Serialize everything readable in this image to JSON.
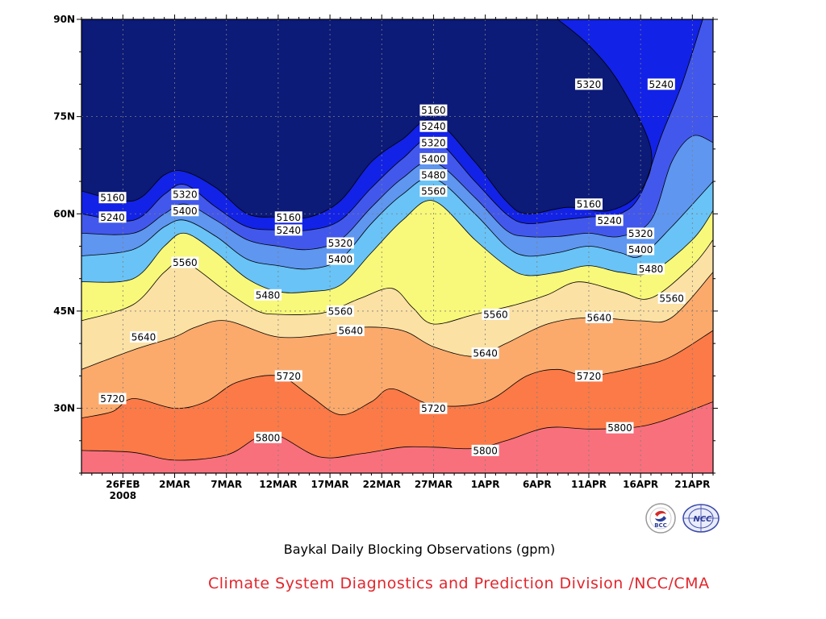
{
  "chart_data": {
    "type": "heatmap",
    "subtype": "filled-contour time-latitude section",
    "title": "Baykal Daily Blocking Observations (gpm)",
    "source": "Climate System Diagnostics and Prediction Division /NCC/CMA",
    "x_ticks": [
      "26FEB",
      "2MAR",
      "7MAR",
      "12MAR",
      "17MAR",
      "22MAR",
      "27MAR",
      "1APR",
      "6APR",
      "11APR",
      "16APR",
      "21APR"
    ],
    "x_tick_year": "2008",
    "x_range": [
      "2008-02-22",
      "2008-04-23"
    ],
    "y_ticks": [
      "30N",
      "45N",
      "60N",
      "75N",
      "90N"
    ],
    "y_range_deg": [
      20,
      90
    ],
    "contour_levels": [
      5160,
      5240,
      5320,
      5400,
      5480,
      5560,
      5640,
      5720,
      5800
    ],
    "fill_colors": [
      "#0c1a78",
      "#1222e6",
      "#4258ec",
      "#5e96f0",
      "#69c3f6",
      "#f8f87a",
      "#fbe1a4",
      "#fbaa6c",
      "#fb7a47",
      "#f8707c"
    ],
    "grid": true,
    "contour_lines": [
      {
        "level": 5800,
        "points": [
          [
            "2008-02-22",
            23.5
          ],
          [
            "2008-02-27",
            23.2
          ],
          [
            "2008-03-02",
            22
          ],
          [
            "2008-03-07",
            22.8
          ],
          [
            "2008-03-10",
            25.5
          ],
          [
            "2008-03-12",
            25.8
          ],
          [
            "2008-03-16",
            22.5
          ],
          [
            "2008-03-20",
            23
          ],
          [
            "2008-03-24",
            24
          ],
          [
            "2008-03-27",
            24
          ],
          [
            "2008-03-31",
            23.8
          ],
          [
            "2008-04-03",
            25
          ],
          [
            "2008-04-07",
            27
          ],
          [
            "2008-04-11",
            26.8
          ],
          [
            "2008-04-15",
            27
          ],
          [
            "2008-04-18",
            28
          ],
          [
            "2008-04-23",
            31
          ]
        ]
      },
      {
        "level": 5720,
        "points": [
          [
            "2008-02-22",
            28.5
          ],
          [
            "2008-02-25",
            29.5
          ],
          [
            "2008-02-27",
            31.5
          ],
          [
            "2008-03-02",
            30
          ],
          [
            "2008-03-05",
            31
          ],
          [
            "2008-03-08",
            34
          ],
          [
            "2008-03-12",
            35
          ],
          [
            "2008-03-15",
            32
          ],
          [
            "2008-03-18",
            29
          ],
          [
            "2008-03-21",
            31
          ],
          [
            "2008-03-23",
            33
          ],
          [
            "2008-03-27",
            30.5
          ],
          [
            "2008-04-01",
            31
          ],
          [
            "2008-04-05",
            35
          ],
          [
            "2008-04-08",
            36
          ],
          [
            "2008-04-11",
            35
          ],
          [
            "2008-04-16",
            36.5
          ],
          [
            "2008-04-19",
            38
          ],
          [
            "2008-04-23",
            42
          ]
        ]
      },
      {
        "level": 5640,
        "points": [
          [
            "2008-02-22",
            36
          ],
          [
            "2008-02-27",
            39
          ],
          [
            "2008-03-02",
            41
          ],
          [
            "2008-03-04",
            42.5
          ],
          [
            "2008-03-07",
            43.5
          ],
          [
            "2008-03-12",
            41
          ],
          [
            "2008-03-17",
            41.5
          ],
          [
            "2008-03-20",
            42.5
          ],
          [
            "2008-03-24",
            42
          ],
          [
            "2008-03-27",
            39.5
          ],
          [
            "2008-03-31",
            38
          ],
          [
            "2008-04-03",
            40
          ],
          [
            "2008-04-07",
            43
          ],
          [
            "2008-04-11",
            44
          ],
          [
            "2008-04-16",
            43.5
          ],
          [
            "2008-04-19",
            44
          ],
          [
            "2008-04-23",
            51
          ]
        ]
      },
      {
        "level": 5560,
        "points": [
          [
            "2008-02-22",
            43.5
          ],
          [
            "2008-02-27",
            46
          ],
          [
            "2008-03-01",
            51
          ],
          [
            "2008-03-03",
            52.5
          ],
          [
            "2008-03-07",
            48
          ],
          [
            "2008-03-10",
            45
          ],
          [
            "2008-03-12",
            44.5
          ],
          [
            "2008-03-15",
            44.5
          ],
          [
            "2008-03-17",
            45
          ],
          [
            "2008-03-20",
            47
          ],
          [
            "2008-03-23",
            48.5
          ],
          [
            "2008-03-25",
            45.5
          ],
          [
            "2008-03-27",
            43
          ],
          [
            "2008-03-31",
            44.5
          ],
          [
            "2008-04-04",
            46
          ],
          [
            "2008-04-07",
            47.5
          ],
          [
            "2008-04-10",
            49.5
          ],
          [
            "2008-04-14",
            48
          ],
          [
            "2008-04-17",
            47
          ],
          [
            "2008-04-21",
            52
          ],
          [
            "2008-04-23",
            56
          ]
        ]
      },
      {
        "level": 5480,
        "points": [
          [
            "2008-02-22",
            49.5
          ],
          [
            "2008-02-27",
            50
          ],
          [
            "2008-03-01",
            55
          ],
          [
            "2008-03-03",
            57
          ],
          [
            "2008-03-06",
            54
          ],
          [
            "2008-03-09",
            50
          ],
          [
            "2008-03-12",
            48
          ],
          [
            "2008-03-15",
            48
          ],
          [
            "2008-03-18",
            49
          ],
          [
            "2008-03-21",
            54
          ],
          [
            "2008-03-24",
            59
          ],
          [
            "2008-03-27",
            62
          ],
          [
            "2008-03-31",
            56
          ],
          [
            "2008-04-03",
            52
          ],
          [
            "2008-04-05",
            50.5
          ],
          [
            "2008-04-08",
            51
          ],
          [
            "2008-04-11",
            52
          ],
          [
            "2008-04-14",
            51
          ],
          [
            "2008-04-17",
            51
          ],
          [
            "2008-04-21",
            56
          ],
          [
            "2008-04-23",
            60.5
          ]
        ]
      },
      {
        "level": 5400,
        "points": [
          [
            "2008-02-22",
            53.5
          ],
          [
            "2008-02-27",
            54.5
          ],
          [
            "2008-03-01",
            58
          ],
          [
            "2008-03-03",
            59
          ],
          [
            "2008-03-06",
            56.5
          ],
          [
            "2008-03-09",
            53
          ],
          [
            "2008-03-12",
            52
          ],
          [
            "2008-03-15",
            51.5
          ],
          [
            "2008-03-18",
            53
          ],
          [
            "2008-03-21",
            58.5
          ],
          [
            "2008-03-24",
            63
          ],
          [
            "2008-03-27",
            65.5
          ],
          [
            "2008-03-31",
            60
          ],
          [
            "2008-04-03",
            55
          ],
          [
            "2008-04-05",
            53.5
          ],
          [
            "2008-04-08",
            54
          ],
          [
            "2008-04-11",
            55
          ],
          [
            "2008-04-14",
            54
          ],
          [
            "2008-04-16",
            53.5
          ],
          [
            "2008-04-19",
            58
          ],
          [
            "2008-04-23",
            65
          ]
        ]
      },
      {
        "level": 5320,
        "points": [
          [
            "2008-02-22",
            57
          ],
          [
            "2008-02-27",
            57
          ],
          [
            "2008-03-01",
            60
          ],
          [
            "2008-03-03",
            61.5
          ],
          [
            "2008-03-06",
            59
          ],
          [
            "2008-03-09",
            56
          ],
          [
            "2008-03-12",
            55
          ],
          [
            "2008-03-15",
            54.5
          ],
          [
            "2008-03-18",
            56
          ],
          [
            "2008-03-21",
            61
          ],
          [
            "2008-03-24",
            65.5
          ],
          [
            "2008-03-27",
            68
          ],
          [
            "2008-03-31",
            62.5
          ],
          [
            "2008-04-03",
            57.5
          ],
          [
            "2008-04-05",
            56.5
          ],
          [
            "2008-04-08",
            56.5
          ],
          [
            "2008-04-11",
            57
          ],
          [
            "2008-04-14",
            56.5
          ],
          [
            "2008-04-17",
            59
          ],
          [
            "2008-04-19",
            68
          ],
          [
            "2008-04-21",
            72
          ],
          [
            "2008-04-23",
            71
          ]
        ]
      },
      {
        "level": 5240,
        "points": [
          [
            "2008-02-22",
            60
          ],
          [
            "2008-02-27",
            59
          ],
          [
            "2008-03-01",
            63
          ],
          [
            "2008-03-03",
            64.5
          ],
          [
            "2008-03-06",
            61
          ],
          [
            "2008-03-09",
            58
          ],
          [
            "2008-03-12",
            57.5
          ],
          [
            "2008-03-15",
            57.5
          ],
          [
            "2008-03-18",
            59
          ],
          [
            "2008-03-21",
            64
          ],
          [
            "2008-03-24",
            68.5
          ],
          [
            "2008-03-27",
            71.5
          ],
          [
            "2008-03-31",
            65
          ],
          [
            "2008-04-03",
            60
          ],
          [
            "2008-04-05",
            58.5
          ],
          [
            "2008-04-08",
            59
          ],
          [
            "2008-04-11",
            59.5
          ],
          [
            "2008-04-14",
            60
          ],
          [
            "2008-04-16",
            63
          ],
          [
            "2008-04-18",
            72
          ],
          [
            "2008-04-20",
            80
          ],
          [
            "2008-04-22",
            90
          ]
        ]
      },
      {
        "level": 5160,
        "points": [
          [
            "2008-02-22",
            63.5
          ],
          [
            "2008-02-27",
            62
          ],
          [
            "2008-03-01",
            66
          ],
          [
            "2008-03-03",
            66.5
          ],
          [
            "2008-03-06",
            64
          ],
          [
            "2008-03-09",
            60
          ],
          [
            "2008-03-12",
            59.5
          ],
          [
            "2008-03-15",
            59.5
          ],
          [
            "2008-03-18",
            62
          ],
          [
            "2008-03-21",
            68
          ],
          [
            "2008-03-24",
            71.5
          ],
          [
            "2008-03-27",
            74.5
          ],
          [
            "2008-03-31",
            68
          ],
          [
            "2008-04-03",
            62
          ],
          [
            "2008-04-05",
            60
          ],
          [
            "2008-04-09",
            61
          ],
          [
            "2008-04-13",
            60.5
          ],
          [
            "2008-04-16",
            63.5
          ],
          [
            "2008-04-17",
            70
          ],
          [
            "2008-04-14",
            80
          ],
          [
            "2008-04-11",
            86
          ],
          [
            "2008-04-08",
            90
          ]
        ]
      }
    ],
    "contour_labels": [
      {
        "text": "5160",
        "x": "2008-02-25",
        "y": 62.5
      },
      {
        "text": "5240",
        "x": "2008-02-25",
        "y": 59.5
      },
      {
        "text": "5320",
        "x": "2008-03-03",
        "y": 63
      },
      {
        "text": "5400",
        "x": "2008-03-03",
        "y": 60.5
      },
      {
        "text": "5560",
        "x": "2008-03-03",
        "y": 52.5
      },
      {
        "text": "5640",
        "x": "2008-02-28",
        "y": 41
      },
      {
        "text": "5720",
        "x": "2008-02-25",
        "y": 31.5
      },
      {
        "text": "5800",
        "x": "2008-03-11",
        "y": 25.5
      },
      {
        "text": "5160",
        "x": "2008-03-13",
        "y": 59.5
      },
      {
        "text": "5240",
        "x": "2008-03-13",
        "y": 57.5
      },
      {
        "text": "5320",
        "x": "2008-03-18",
        "y": 55.5
      },
      {
        "text": "5400",
        "x": "2008-03-18",
        "y": 53
      },
      {
        "text": "5480",
        "x": "2008-03-11",
        "y": 47.5
      },
      {
        "text": "5560",
        "x": "2008-03-18",
        "y": 45
      },
      {
        "text": "5640",
        "x": "2008-03-19",
        "y": 42
      },
      {
        "text": "5720",
        "x": "2008-03-13",
        "y": 35
      },
      {
        "text": "5160",
        "x": "2008-03-27",
        "y": 76
      },
      {
        "text": "5240",
        "x": "2008-03-27",
        "y": 73.5
      },
      {
        "text": "5320",
        "x": "2008-03-27",
        "y": 71
      },
      {
        "text": "5400",
        "x": "2008-03-27",
        "y": 68.5
      },
      {
        "text": "5480",
        "x": "2008-03-27",
        "y": 66
      },
      {
        "text": "5560",
        "x": "2008-03-27",
        "y": 63.5
      },
      {
        "text": "5720",
        "x": "2008-03-27",
        "y": 30
      },
      {
        "text": "5560",
        "x": "2008-04-02",
        "y": 44.5
      },
      {
        "text": "5640",
        "x": "2008-04-01",
        "y": 38.5
      },
      {
        "text": "5800",
        "x": "2008-04-01",
        "y": 23.5
      },
      {
        "text": "5320",
        "x": "2008-04-11",
        "y": 80
      },
      {
        "text": "5240",
        "x": "2008-04-18",
        "y": 80
      },
      {
        "text": "5160",
        "x": "2008-04-11",
        "y": 61.5
      },
      {
        "text": "5240",
        "x": "2008-04-13",
        "y": 59
      },
      {
        "text": "5320",
        "x": "2008-04-16",
        "y": 57
      },
      {
        "text": "5400",
        "x": "2008-04-16",
        "y": 54.5
      },
      {
        "text": "5480",
        "x": "2008-04-17",
        "y": 51.5
      },
      {
        "text": "5560",
        "x": "2008-04-19",
        "y": 47
      },
      {
        "text": "5640",
        "x": "2008-04-12",
        "y": 44
      },
      {
        "text": "5720",
        "x": "2008-04-11",
        "y": 35
      },
      {
        "text": "5800",
        "x": "2008-04-14",
        "y": 27
      }
    ]
  },
  "footer": {
    "title": "Baykal Daily Blocking Observations (gpm)",
    "credit": "Climate System Diagnostics and Prediction Division /NCC/CMA"
  },
  "logos": [
    {
      "name": "bcc-logo",
      "text": "BCC"
    },
    {
      "name": "ncc-logo",
      "text": "NCC"
    }
  ]
}
